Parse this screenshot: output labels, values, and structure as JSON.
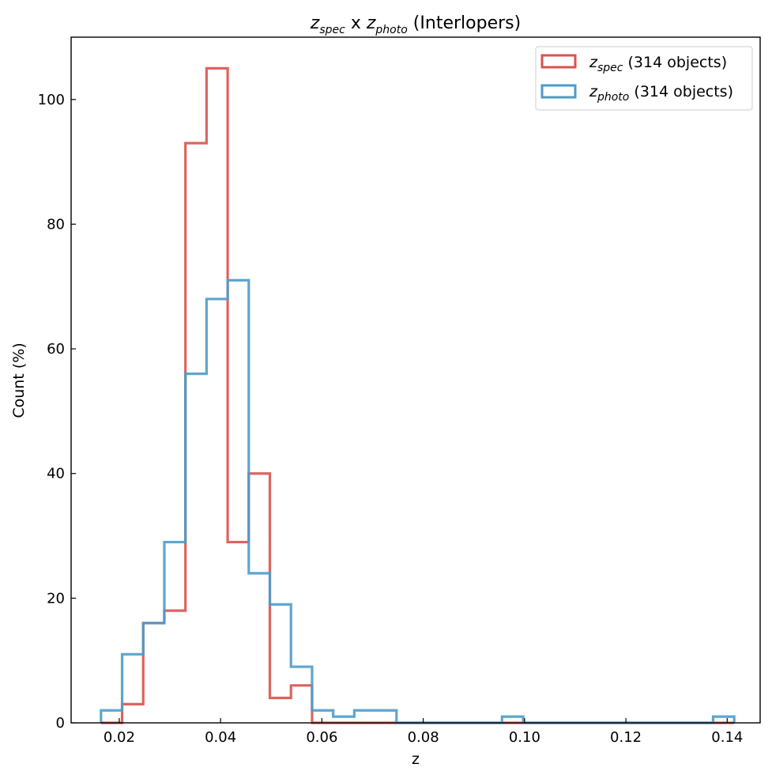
{
  "chart_data": {
    "type": "histogram-step",
    "title": {
      "base1": "z",
      "sub1": "spec",
      "mid": " x ",
      "base2": "z",
      "sub2": "photo",
      "tail": " (Interlopers)"
    },
    "xlabel": "z",
    "ylabel": "Count (%)",
    "xlim": [
      0.0105,
      0.1465
    ],
    "ylim": [
      0,
      110
    ],
    "xticks": [
      0.02,
      0.04,
      0.06,
      0.08,
      0.1,
      0.12,
      0.14
    ],
    "xtick_labels": [
      "0.02",
      "0.04",
      "0.06",
      "0.08",
      "0.10",
      "0.12",
      "0.14"
    ],
    "yticks": [
      0,
      20,
      40,
      60,
      80,
      100
    ],
    "ytick_labels": [
      "0",
      "20",
      "40",
      "60",
      "80",
      "100"
    ],
    "bins": {
      "start": 0.0164,
      "width": 0.004166,
      "count": 30
    },
    "series": [
      {
        "name": "z_spec",
        "legend_base": "z",
        "legend_sub": "spec",
        "legend_tail": " (314 objects)",
        "color": "#d9534f",
        "counts": [
          0,
          3,
          16,
          18,
          93,
          105,
          29,
          40,
          4,
          6,
          0,
          0,
          0,
          0,
          0,
          0,
          0,
          0,
          0,
          0,
          0,
          0,
          0,
          0,
          0,
          0,
          0,
          0,
          0,
          0
        ]
      },
      {
        "name": "z_photo",
        "legend_base": "z",
        "legend_sub": "photo",
        "legend_tail": " (314 objects)",
        "color": "#4c9bca",
        "counts": [
          2,
          11,
          16,
          29,
          56,
          68,
          71,
          24,
          19,
          9,
          2,
          1,
          2,
          2,
          0,
          0,
          0,
          0,
          0,
          1,
          0,
          0,
          0,
          0,
          0,
          0,
          0,
          0,
          0,
          1
        ]
      }
    ],
    "legend_position": "top-right",
    "grid": false
  }
}
